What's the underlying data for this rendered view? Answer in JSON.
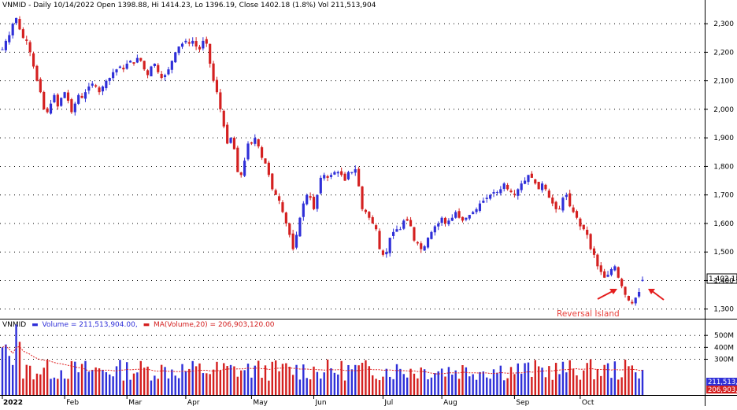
{
  "header": {
    "symbol": "VNMID",
    "text": "VNMID - Daily 10/14/2022 Open 1398.88, Hi 1414.23, Lo 1396.19, Close 1402.18 (1.8%) Vol 211,513,904"
  },
  "price_panel": {
    "last_value_label": "1,402.18",
    "annotation": "Reversal Island",
    "annotation_color": "#e8413b",
    "arrow_color": "#e41e1e"
  },
  "volume_panel": {
    "label_symbol": "VNMID",
    "label_volume": "Volume = 211,513,904.00,",
    "label_ma": "MA(Volume,20) = 206,903,120.00",
    "last_volume_label": "211,513,9",
    "last_ma_label": "206,903,1"
  },
  "colors": {
    "up": "#2f2fd8",
    "down": "#d42020",
    "grid": "#000000",
    "ma": "#e02020"
  },
  "chart_data": [
    {
      "type": "candlestick",
      "title": "VNMID - Daily 10/14/2022",
      "ylim": [
        1280,
        2350
      ],
      "y_ticks": [
        1300,
        1400,
        1500,
        1600,
        1700,
        1800,
        1900,
        2000,
        2100,
        2200,
        2300
      ],
      "y_tick_labels": [
        "1,300",
        "1,400",
        "1,500",
        "1,600",
        "1,700",
        "1,800",
        "1,900",
        "2,000",
        "2,100",
        "2,200",
        "2,300"
      ],
      "x_labels": [
        "2022",
        "Feb",
        "Mar",
        "Apr",
        "May",
        "Jun",
        "Jul",
        "Aug",
        "Sep",
        "Oct"
      ],
      "x_label_positions": [
        0,
        18,
        36,
        53,
        72,
        90,
        110,
        127,
        148,
        167
      ],
      "last": {
        "open": 1398.88,
        "high": 1414.23,
        "low": 1396.19,
        "close": 1402.18
      },
      "close": [
        2210,
        2240,
        2260,
        2300,
        2320,
        2280,
        2250,
        2240,
        2200,
        2150,
        2100,
        2060,
        2000,
        1990,
        2020,
        2050,
        2010,
        2040,
        2060,
        2030,
        1990,
        2020,
        2050,
        2040,
        2060,
        2080,
        2090,
        2080,
        2060,
        2080,
        2100,
        2110,
        2130,
        2140,
        2150,
        2140,
        2160,
        2170,
        2160,
        2180,
        2170,
        2140,
        2120,
        2150,
        2160,
        2130,
        2110,
        2120,
        2140,
        2170,
        2200,
        2220,
        2230,
        2240,
        2230,
        2240,
        2220,
        2210,
        2240,
        2230,
        2160,
        2100,
        2060,
        2000,
        1940,
        1880,
        1900,
        1860,
        1780,
        1770,
        1820,
        1880,
        1880,
        1900,
        1870,
        1830,
        1810,
        1770,
        1720,
        1700,
        1680,
        1640,
        1600,
        1560,
        1510,
        1560,
        1620,
        1670,
        1700,
        1690,
        1650,
        1700,
        1760,
        1770,
        1760,
        1770,
        1780,
        1780,
        1770,
        1750,
        1780,
        1780,
        1790,
        1730,
        1650,
        1640,
        1620,
        1600,
        1580,
        1510,
        1490,
        1500,
        1550,
        1570,
        1580,
        1580,
        1610,
        1610,
        1590,
        1540,
        1530,
        1510,
        1520,
        1550,
        1570,
        1590,
        1600,
        1620,
        1600,
        1610,
        1620,
        1640,
        1620,
        1610,
        1620,
        1630,
        1640,
        1650,
        1670,
        1680,
        1690,
        1700,
        1710,
        1710,
        1720,
        1740,
        1720,
        1710,
        1700,
        1720,
        1740,
        1750,
        1770,
        1760,
        1740,
        1720,
        1740,
        1720,
        1690,
        1670,
        1650,
        1650,
        1690,
        1700,
        1660,
        1640,
        1620,
        1590,
        1580,
        1560,
        1510,
        1490,
        1450,
        1430,
        1410,
        1420,
        1440,
        1450,
        1410,
        1380,
        1350,
        1330,
        1320,
        1340,
        1360,
        1402.18
      ],
      "volume_ylim": [
        0,
        620000000
      ],
      "volume_ticks": [
        "300M",
        "400M",
        "500M"
      ],
      "volume_ma_period": 20,
      "last_volume": 211513904,
      "last_volume_ma": 206903120,
      "annotations": [
        "Reversal Island"
      ]
    }
  ]
}
